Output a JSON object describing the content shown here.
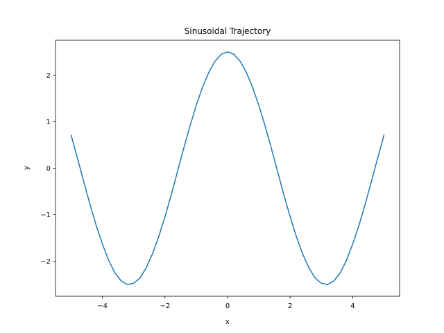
{
  "chart_data": {
    "type": "line",
    "title": "Sinusoidal Trajectory",
    "xlabel": "x",
    "ylabel": "y",
    "xlim": [
      -5.5,
      5.5
    ],
    "ylim": [
      -2.75,
      2.75
    ],
    "xticks": [
      -4,
      -2,
      0,
      2,
      4
    ],
    "yticks": [
      -2,
      -1,
      0,
      1,
      2
    ],
    "xtick_labels": [
      "−4",
      "−2",
      "0",
      "2",
      "4"
    ],
    "ytick_labels": [
      "−2",
      "−1",
      "0",
      "1",
      "2"
    ],
    "grid": false,
    "legend": false,
    "line_color": "#1f77b4",
    "series": [
      {
        "x": [
          -5.0,
          -4.8,
          -4.6,
          -4.4,
          -4.2,
          -4.0,
          -3.8,
          -3.6,
          -3.4,
          -3.2,
          -3.0,
          -2.8,
          -2.6,
          -2.4,
          -2.2,
          -2.0,
          -1.8,
          -1.6,
          -1.4,
          -1.2,
          -1.0,
          -0.8,
          -0.6,
          -0.4,
          -0.2,
          0.0,
          0.2,
          0.4,
          0.6,
          0.8,
          1.0,
          1.2,
          1.4,
          1.6,
          1.8,
          2.0,
          2.2,
          2.4,
          2.6,
          2.8,
          3.0,
          3.2,
          3.4,
          3.6,
          3.8,
          4.0,
          4.2,
          4.4,
          4.6,
          4.8,
          5.0
        ],
        "values": [
          0.71,
          0.22,
          -0.28,
          -0.77,
          -1.23,
          -1.63,
          -1.98,
          -2.25,
          -2.42,
          -2.5,
          -2.47,
          -2.36,
          -2.14,
          -1.84,
          -1.47,
          -1.04,
          -0.57,
          -0.07,
          0.43,
          0.91,
          1.35,
          1.74,
          2.06,
          2.3,
          2.45,
          2.5,
          2.45,
          2.3,
          2.06,
          1.74,
          1.35,
          0.91,
          0.43,
          -0.07,
          -0.57,
          -1.04,
          -1.47,
          -1.84,
          -2.14,
          -2.36,
          -2.47,
          -2.5,
          -2.42,
          -2.25,
          -1.98,
          -1.63,
          -1.23,
          -0.77,
          -0.28,
          0.22,
          0.71
        ]
      }
    ]
  }
}
